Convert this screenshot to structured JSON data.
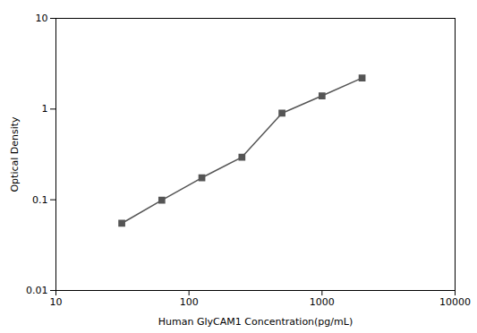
{
  "chart_data": {
    "type": "line",
    "x": [
      31.25,
      62.5,
      125,
      250,
      500,
      1000,
      2000
    ],
    "values": [
      0.055,
      0.099,
      0.175,
      0.295,
      0.9,
      1.4,
      2.2
    ],
    "xlabel": "Human GlyCAM1 Concentration(pg/mL)",
    "ylabel": "Optical Density",
    "xlim": [
      10,
      10000
    ],
    "ylim": [
      0.01,
      10
    ],
    "xticks": [
      10,
      100,
      1000,
      10000
    ],
    "yticks": [
      0.01,
      0.1,
      1,
      10
    ],
    "log": true,
    "grid": false,
    "color": "#555555",
    "marker": "square",
    "line_style": "solid"
  }
}
